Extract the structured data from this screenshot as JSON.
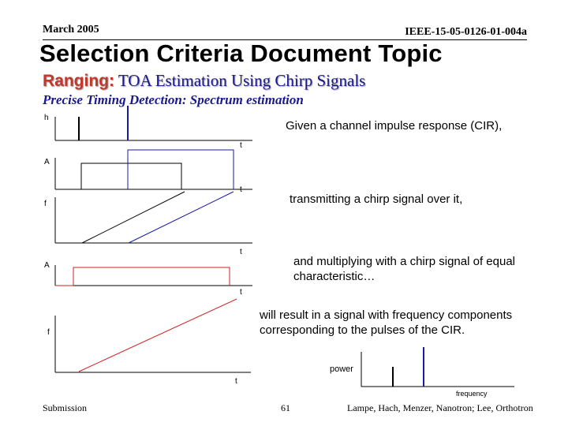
{
  "header": {
    "date": "March 2005",
    "doc_id": "IEEE-15-05-0126-01-004a"
  },
  "title": "Selection Criteria Document Topic",
  "subtitle": {
    "keyword": "Ranging:",
    "text": "TOA Estimation Using Chirp Signals"
  },
  "section_heading": "Precise Timing Detection: Spectrum estimation",
  "diagram": {
    "axis_labels": {
      "cir_y": "h",
      "cir_x": "t",
      "pulse_y": "A",
      "pulse_x": "t",
      "chirp_y": "f",
      "chirp_x": "t",
      "ref_pulse_y": "A",
      "ref_pulse_x": "t",
      "ref_chirp_y": "f",
      "ref_chirp_x": "t",
      "spectrum_y": "power",
      "spectrum_x": "frequency"
    },
    "colors": {
      "first_path": "#000000",
      "second_path": "#1a1aa8",
      "reference": "#d02020"
    }
  },
  "captions": {
    "cir": "Given a channel impulse response (CIR),",
    "transmit": "transmitting a chirp signal over it,",
    "multiply": "and multiplying with a chirp signal of equal characteristic…",
    "result": "will result in a signal with frequency components corresponding to the pulses of the CIR."
  },
  "footer": {
    "left": "Submission",
    "page": "61",
    "right": "Lampe, Hach, Menzer, Nanotron; Lee, Orthotron"
  }
}
